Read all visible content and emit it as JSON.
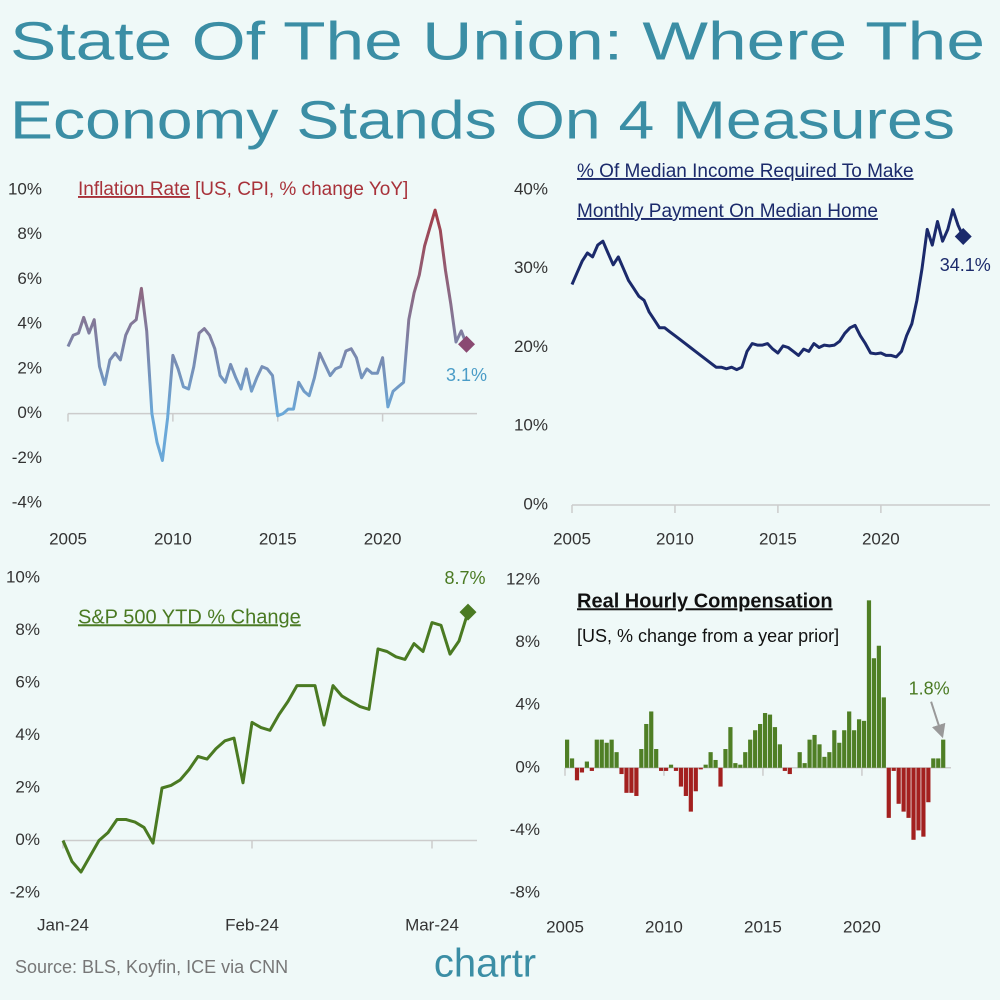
{
  "title_lines": [
    "State Of The Union: Where The",
    "Economy Stands On 4 Measures"
  ],
  "source": "Source: BLS, Koyfin, ICE via CNN",
  "logo": "chartr",
  "chart_data": [
    {
      "type": "line",
      "title": "Inflation Rate",
      "subtitle": "[US, CPI, % change YoY]",
      "gradient": [
        "#a8323a",
        "#6aa8d8"
      ],
      "marker_color": "#8a4a72",
      "label_color": "#4a9cc7",
      "x": [
        2005,
        2005.25,
        2005.5,
        2005.75,
        2006,
        2006.25,
        2006.5,
        2006.75,
        2007,
        2007.25,
        2007.5,
        2007.75,
        2008,
        2008.25,
        2008.5,
        2008.75,
        2009,
        2009.25,
        2009.5,
        2009.75,
        2010,
        2010.25,
        2010.5,
        2010.75,
        2011,
        2011.25,
        2011.5,
        2011.75,
        2012,
        2012.25,
        2012.5,
        2012.75,
        2013,
        2013.25,
        2013.5,
        2013.75,
        2014,
        2014.25,
        2014.5,
        2014.75,
        2015,
        2015.25,
        2015.5,
        2015.75,
        2016,
        2016.25,
        2016.5,
        2016.75,
        2017,
        2017.25,
        2017.5,
        2017.75,
        2018,
        2018.25,
        2018.5,
        2018.75,
        2019,
        2019.25,
        2019.5,
        2019.75,
        2020,
        2020.25,
        2020.5,
        2020.75,
        2021,
        2021.25,
        2021.5,
        2021.75,
        2022,
        2022.25,
        2022.5,
        2022.75,
        2023,
        2023.25,
        2023.5,
        2023.75,
        2024
      ],
      "values": [
        3.0,
        3.5,
        3.6,
        4.3,
        3.6,
        4.2,
        2.1,
        1.3,
        2.4,
        2.7,
        2.4,
        3.5,
        4.0,
        4.2,
        5.6,
        3.7,
        0.0,
        -1.3,
        -2.1,
        -0.2,
        2.6,
        2.0,
        1.2,
        1.1,
        2.1,
        3.6,
        3.8,
        3.5,
        2.9,
        1.7,
        1.4,
        2.2,
        1.6,
        1.1,
        2.0,
        1.0,
        1.6,
        2.1,
        2.0,
        1.7,
        -0.1,
        0.0,
        0.2,
        0.2,
        1.4,
        1.0,
        0.8,
        1.6,
        2.7,
        2.2,
        1.7,
        2.0,
        2.1,
        2.8,
        2.9,
        2.5,
        1.6,
        2.0,
        1.8,
        1.8,
        2.5,
        0.3,
        1.0,
        1.2,
        1.4,
        4.2,
        5.4,
        6.2,
        7.5,
        8.3,
        9.1,
        8.2,
        6.4,
        4.9,
        3.2,
        3.7,
        3.1
      ],
      "value_labels": [
        null,
        null,
        null,
        null,
        null,
        null,
        null,
        null,
        null,
        null,
        null,
        null,
        null,
        null,
        null,
        null,
        null,
        null,
        null,
        null,
        null,
        null,
        null,
        null,
        null,
        null,
        null,
        null,
        null,
        null,
        null,
        null,
        null,
        null,
        null,
        null,
        null,
        null,
        null,
        null,
        null,
        null,
        null,
        null,
        null,
        null,
        null,
        null,
        null,
        null,
        null,
        null,
        null,
        null,
        null,
        null,
        null,
        null,
        null,
        null,
        null,
        null,
        null,
        null,
        null,
        null,
        null,
        null,
        null,
        null,
        null,
        null,
        null,
        null,
        null,
        null,
        "3.1%"
      ],
      "xlim": [
        2005,
        2024.5
      ],
      "xticks": [
        2005,
        2010,
        2015,
        2020
      ],
      "ylim": [
        -4,
        10
      ],
      "yticks": [
        {
          "value": -4,
          "label": "-4%"
        },
        {
          "value": -2,
          "label": "-2%"
        },
        {
          "value": 0,
          "label": "0%"
        },
        {
          "value": 2,
          "label": "2%"
        },
        {
          "value": 4,
          "label": "4%"
        },
        {
          "value": 6,
          "label": "6%"
        },
        {
          "value": 8,
          "label": "8%"
        },
        {
          "value": 10,
          "label": "10%"
        }
      ]
    },
    {
      "type": "line",
      "title_lines": [
        "% Of Median Income Required To Make",
        "Monthly Payment On Median Home"
      ],
      "color": "#1b2a6b",
      "x": [
        2005,
        2005.25,
        2005.5,
        2005.75,
        2006,
        2006.25,
        2006.5,
        2006.75,
        2007,
        2007.25,
        2007.5,
        2007.75,
        2008,
        2008.25,
        2008.5,
        2008.75,
        2009,
        2009.25,
        2009.5,
        2009.75,
        2010,
        2010.25,
        2010.5,
        2010.75,
        2011,
        2011.25,
        2011.5,
        2011.75,
        2012,
        2012.25,
        2012.5,
        2012.75,
        2013,
        2013.25,
        2013.5,
        2013.75,
        2014,
        2014.25,
        2014.5,
        2014.75,
        2015,
        2015.25,
        2015.5,
        2015.75,
        2016,
        2016.25,
        2016.5,
        2016.75,
        2017,
        2017.25,
        2017.5,
        2017.75,
        2018,
        2018.25,
        2018.5,
        2018.75,
        2019,
        2019.25,
        2019.5,
        2019.75,
        2020,
        2020.25,
        2020.5,
        2020.75,
        2021,
        2021.25,
        2021.5,
        2021.75,
        2022,
        2022.25,
        2022.5,
        2022.75,
        2023,
        2023.25,
        2023.5,
        2023.75,
        2024
      ],
      "values": [
        28,
        29.5,
        31,
        32,
        31.5,
        33,
        33.5,
        32,
        30.5,
        31.5,
        30,
        28.5,
        27.5,
        26.5,
        26,
        24.5,
        23.5,
        22.5,
        22.5,
        22,
        21.5,
        21,
        20.5,
        20,
        19.5,
        19,
        18.5,
        18,
        17.5,
        17.5,
        17.3,
        17.5,
        17.2,
        17.5,
        19.5,
        20.5,
        20.3,
        20.3,
        20.5,
        19.8,
        19.3,
        20.2,
        20,
        19.5,
        19,
        19.8,
        19.5,
        20.5,
        20,
        20.3,
        20.2,
        20.3,
        20.8,
        21.8,
        22.5,
        22.8,
        21.5,
        20.5,
        19.3,
        19.2,
        19.3,
        19,
        19,
        18.8,
        19.5,
        21.5,
        23,
        26,
        30,
        35,
        33,
        36,
        33.5,
        35,
        37.5,
        35.5,
        34.1
      ],
      "value_labels": [
        null,
        null,
        null,
        null,
        null,
        null,
        null,
        null,
        null,
        null,
        null,
        null,
        null,
        null,
        null,
        null,
        null,
        null,
        null,
        null,
        null,
        null,
        null,
        null,
        null,
        null,
        null,
        null,
        null,
        null,
        null,
        null,
        null,
        null,
        null,
        null,
        null,
        null,
        null,
        null,
        null,
        null,
        null,
        null,
        null,
        null,
        null,
        null,
        null,
        null,
        null,
        null,
        null,
        null,
        null,
        null,
        null,
        null,
        null,
        null,
        null,
        null,
        null,
        null,
        null,
        null,
        null,
        null,
        null,
        null,
        null,
        null,
        null,
        null,
        null,
        null,
        "34.1%"
      ],
      "xlim": [
        2005,
        2025.3
      ],
      "xticks": [
        2005,
        2010,
        2015,
        2020
      ],
      "ylim": [
        0,
        40
      ],
      "yticks": [
        {
          "value": 0,
          "label": "0%"
        },
        {
          "value": 10,
          "label": "10%"
        },
        {
          "value": 20,
          "label": "20%"
        },
        {
          "value": 30,
          "label": "30%"
        },
        {
          "value": 40,
          "label": "40%"
        }
      ]
    },
    {
      "type": "line",
      "title": "S&P 500 YTD % Change",
      "color": "#4a7a22",
      "categories": [
        "Jan-24",
        null,
        null,
        null,
        null,
        null,
        null,
        null,
        null,
        null,
        null,
        null,
        null,
        null,
        null,
        null,
        null,
        null,
        null,
        null,
        null,
        "Feb-24",
        null,
        null,
        null,
        null,
        null,
        null,
        null,
        null,
        null,
        null,
        null,
        null,
        null,
        null,
        null,
        null,
        null,
        null,
        null,
        "Mar-24",
        null,
        null,
        null,
        null
      ],
      "values": [
        0.0,
        -0.8,
        -1.2,
        -0.6,
        0.0,
        0.3,
        0.8,
        0.8,
        0.7,
        0.5,
        -0.1,
        2.0,
        2.1,
        2.3,
        2.7,
        3.2,
        3.1,
        3.5,
        3.8,
        3.9,
        2.2,
        4.5,
        4.3,
        4.2,
        4.8,
        5.3,
        5.9,
        5.9,
        5.9,
        4.4,
        5.9,
        5.5,
        5.3,
        5.1,
        5.0,
        7.3,
        7.2,
        7.0,
        6.9,
        7.5,
        7.2,
        8.3,
        8.2,
        7.1,
        7.6,
        8.7
      ],
      "value_labels": [
        null,
        null,
        null,
        null,
        null,
        null,
        null,
        null,
        null,
        null,
        null,
        null,
        null,
        null,
        null,
        null,
        null,
        null,
        null,
        null,
        null,
        null,
        null,
        null,
        null,
        null,
        null,
        null,
        null,
        null,
        null,
        null,
        null,
        null,
        null,
        null,
        null,
        null,
        null,
        null,
        null,
        null,
        null,
        null,
        null,
        "8.7%"
      ],
      "ylim": [
        -2,
        10
      ],
      "yticks": [
        {
          "value": -2,
          "label": "-2%"
        },
        {
          "value": 0,
          "label": "0%"
        },
        {
          "value": 2,
          "label": "2%"
        },
        {
          "value": 4,
          "label": "4%"
        },
        {
          "value": 6,
          "label": "6%"
        },
        {
          "value": 8,
          "label": "8%"
        },
        {
          "value": 10,
          "label": "10%"
        }
      ]
    },
    {
      "type": "bar",
      "title": "Real Hourly Compensation",
      "subtitle": "[US, % change from a year prior]",
      "positive_color": "#4f7f25",
      "negative_color": "#a3201f",
      "label_color": "#4a7a22",
      "x": [
        2005,
        2005.25,
        2005.5,
        2005.75,
        2006,
        2006.25,
        2006.5,
        2006.75,
        2007,
        2007.25,
        2007.5,
        2007.75,
        2008,
        2008.25,
        2008.5,
        2008.75,
        2009,
        2009.25,
        2009.5,
        2009.75,
        2010,
        2010.25,
        2010.5,
        2010.75,
        2011,
        2011.25,
        2011.5,
        2011.75,
        2012,
        2012.25,
        2012.5,
        2012.75,
        2013,
        2013.25,
        2013.5,
        2013.75,
        2014,
        2014.25,
        2014.5,
        2014.75,
        2015,
        2015.25,
        2015.5,
        2015.75,
        2016,
        2016.25,
        2016.5,
        2016.75,
        2017,
        2017.25,
        2017.5,
        2017.75,
        2018,
        2018.25,
        2018.5,
        2018.75,
        2019,
        2019.25,
        2019.5,
        2019.75,
        2020,
        2020.25,
        2020.5,
        2020.75,
        2021,
        2021.25,
        2021.5,
        2021.75,
        2022,
        2022.25,
        2022.5,
        2022.75,
        2023,
        2023.25,
        2023.5,
        2023.75,
        2024
      ],
      "values": [
        1.8,
        0.6,
        -0.8,
        -0.3,
        0.4,
        -0.2,
        1.8,
        1.8,
        1.6,
        1.8,
        1.0,
        -0.4,
        -1.6,
        -1.6,
        -1.8,
        1.2,
        2.8,
        3.6,
        1.2,
        -0.2,
        -0.2,
        0.2,
        -0.2,
        -1.2,
        -1.8,
        -2.8,
        -1.5,
        -0.1,
        0.2,
        1.0,
        0.5,
        -1.2,
        1.2,
        2.6,
        0.3,
        0.2,
        1.0,
        1.8,
        2.4,
        2.8,
        3.5,
        3.4,
        2.6,
        1.5,
        -0.2,
        -0.4,
        0.0,
        1.0,
        0.3,
        1.8,
        2.1,
        1.5,
        0.7,
        1.0,
        2.4,
        1.6,
        2.4,
        3.6,
        2.4,
        3.1,
        3.0,
        10.7,
        7.0,
        7.8,
        4.5,
        -3.2,
        -0.2,
        -2.3,
        -2.8,
        -3.2,
        -4.6,
        -4.0,
        -4.4,
        -2.2,
        0.6,
        0.6,
        1.8
      ],
      "value_labels": [
        null,
        null,
        null,
        null,
        null,
        null,
        null,
        null,
        null,
        null,
        null,
        null,
        null,
        null,
        null,
        null,
        null,
        null,
        null,
        null,
        null,
        null,
        null,
        null,
        null,
        null,
        null,
        null,
        null,
        null,
        null,
        null,
        null,
        null,
        null,
        null,
        null,
        null,
        null,
        null,
        null,
        null,
        null,
        null,
        null,
        null,
        null,
        null,
        null,
        null,
        null,
        null,
        null,
        null,
        null,
        null,
        null,
        null,
        null,
        null,
        null,
        null,
        null,
        null,
        null,
        null,
        null,
        null,
        null,
        null,
        null,
        null,
        null,
        null,
        null,
        null,
        "1.8%"
      ],
      "xlim": [
        2005,
        2024.5
      ],
      "xticks": [
        2005,
        2010,
        2015,
        2020
      ],
      "ylim": [
        -8,
        12
      ],
      "yticks": [
        {
          "value": -8,
          "label": "-8%"
        },
        {
          "value": -4,
          "label": "-4%"
        },
        {
          "value": 0,
          "label": "0%"
        },
        {
          "value": 4,
          "label": "4%"
        },
        {
          "value": 8,
          "label": "8%"
        },
        {
          "value": 12,
          "label": "12%"
        }
      ]
    }
  ]
}
